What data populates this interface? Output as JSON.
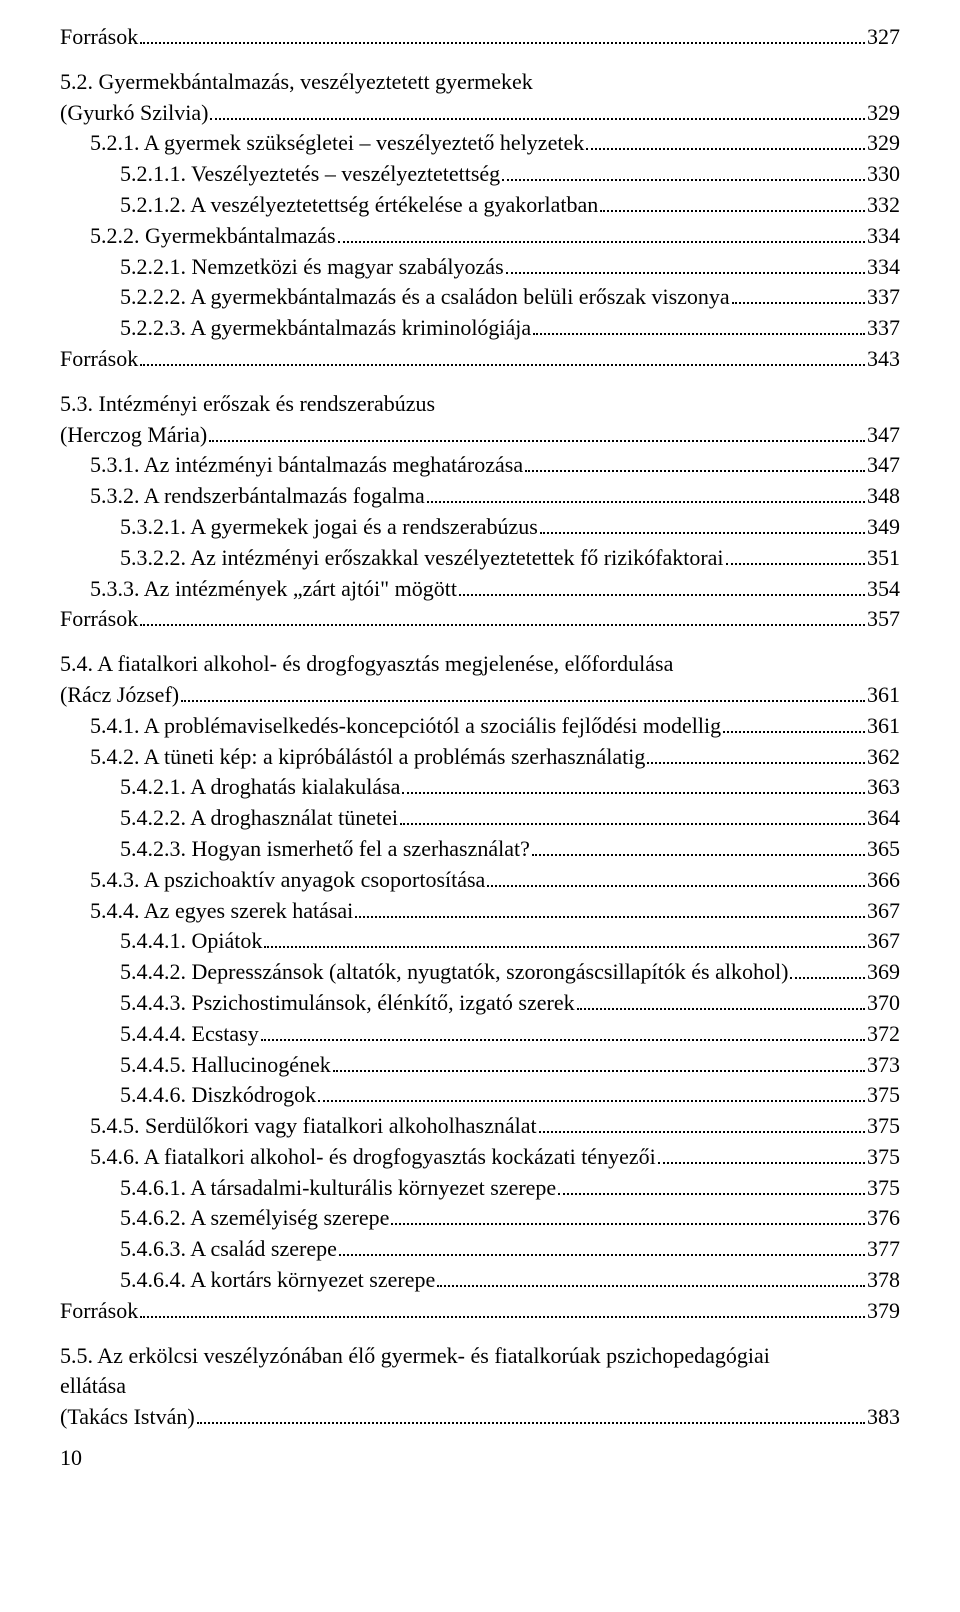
{
  "font_family": "Times New Roman",
  "base_font_size_pt": 12,
  "text_color": "#000000",
  "background_color": "#ffffff",
  "page_number": "10",
  "entries": [
    {
      "indent": 0,
      "label": "Források",
      "page": "327",
      "gap": false,
      "continuation": false
    },
    {
      "indent": 0,
      "label": "5.2. Gyermekbántalmazás, veszélyeztetett gyermekek",
      "page": "",
      "gap": true,
      "continuation": true
    },
    {
      "indent": 0,
      "label": "(Gyurkó Szilvia)",
      "page": "329",
      "gap": false,
      "continuation": false
    },
    {
      "indent": 1,
      "label": "5.2.1. A gyermek szükségletei – veszélyeztető helyzetek",
      "page": "329",
      "gap": false,
      "continuation": false
    },
    {
      "indent": 2,
      "label": "5.2.1.1. Veszélyeztetés – veszélyeztetettség",
      "page": "330",
      "gap": false,
      "continuation": false
    },
    {
      "indent": 2,
      "label": "5.2.1.2. A veszélyeztetettség értékelése a gyakorlatban",
      "page": "332",
      "gap": false,
      "continuation": false
    },
    {
      "indent": 1,
      "label": "5.2.2. Gyermekbántalmazás",
      "page": "334",
      "gap": false,
      "continuation": false
    },
    {
      "indent": 2,
      "label": "5.2.2.1. Nemzetközi és magyar szabályozás",
      "page": "334",
      "gap": false,
      "continuation": false
    },
    {
      "indent": 2,
      "label": "5.2.2.2. A gyermekbántalmazás és a családon belüli erőszak viszonya",
      "page": "337",
      "gap": false,
      "continuation": false
    },
    {
      "indent": 2,
      "label": "5.2.2.3. A gyermekbántalmazás kriminológiája",
      "page": "337",
      "gap": false,
      "continuation": false
    },
    {
      "indent": 0,
      "label": "Források",
      "page": "343",
      "gap": false,
      "continuation": false
    },
    {
      "indent": 0,
      "label": "5.3. Intézményi erőszak és rendszerabúzus",
      "page": "",
      "gap": true,
      "continuation": true
    },
    {
      "indent": 0,
      "label": "(Herczog Mária)",
      "page": "347",
      "gap": false,
      "continuation": false
    },
    {
      "indent": 1,
      "label": "5.3.1. Az intézményi bántalmazás meghatározása",
      "page": "347",
      "gap": false,
      "continuation": false
    },
    {
      "indent": 1,
      "label": "5.3.2. A rendszerbántalmazás fogalma",
      "page": "348",
      "gap": false,
      "continuation": false
    },
    {
      "indent": 2,
      "label": "5.3.2.1. A gyermekek jogai és a rendszerabúzus",
      "page": "349",
      "gap": false,
      "continuation": false
    },
    {
      "indent": 2,
      "label": "5.3.2.2. Az intézményi erőszakkal veszélyeztetettek fő rizikófaktorai",
      "page": "351",
      "gap": false,
      "continuation": false
    },
    {
      "indent": 1,
      "label": "5.3.3. Az intézmények „zárt ajtói\" mögött",
      "page": "354",
      "gap": false,
      "continuation": false
    },
    {
      "indent": 0,
      "label": "Források",
      "page": "357",
      "gap": false,
      "continuation": false
    },
    {
      "indent": 0,
      "label": "5.4. A fiatalkori alkohol- és drogfogyasztás megjelenése, előfordulása",
      "page": "",
      "gap": true,
      "continuation": true
    },
    {
      "indent": 0,
      "label": "(Rácz József)",
      "page": "361",
      "gap": false,
      "continuation": false
    },
    {
      "indent": 1,
      "label": "5.4.1. A problémaviselkedés-koncepciótól a szociális fejlődési modellig",
      "page": "361",
      "gap": false,
      "continuation": false
    },
    {
      "indent": 1,
      "label": "5.4.2. A tüneti kép: a kipróbálástól a problémás szerhasználatig",
      "page": "362",
      "gap": false,
      "continuation": false
    },
    {
      "indent": 2,
      "label": "5.4.2.1. A droghatás kialakulása",
      "page": "363",
      "gap": false,
      "continuation": false
    },
    {
      "indent": 2,
      "label": "5.4.2.2. A droghasználat tünetei",
      "page": "364",
      "gap": false,
      "continuation": false
    },
    {
      "indent": 2,
      "label": "5.4.2.3. Hogyan ismerhető fel a szerhasználat?",
      "page": "365",
      "gap": false,
      "continuation": false
    },
    {
      "indent": 1,
      "label": "5.4.3. A pszichoaktív anyagok csoportosítása",
      "page": "366",
      "gap": false,
      "continuation": false
    },
    {
      "indent": 1,
      "label": "5.4.4. Az egyes szerek hatásai",
      "page": "367",
      "gap": false,
      "continuation": false
    },
    {
      "indent": 2,
      "label": "5.4.4.1. Opiátok",
      "page": "367",
      "gap": false,
      "continuation": false
    },
    {
      "indent": 2,
      "label": "5.4.4.2. Depresszánsok (altatók, nyugtatók, szorongáscsillapítók és alkohol)",
      "page": "369",
      "gap": false,
      "continuation": false
    },
    {
      "indent": 2,
      "label": "5.4.4.3. Pszichostimulánsok, élénkítő, izgató szerek",
      "page": "370",
      "gap": false,
      "continuation": false
    },
    {
      "indent": 2,
      "label": "5.4.4.4. Ecstasy",
      "page": "372",
      "gap": false,
      "continuation": false
    },
    {
      "indent": 2,
      "label": "5.4.4.5. Hallucinogének",
      "page": "373",
      "gap": false,
      "continuation": false
    },
    {
      "indent": 2,
      "label": "5.4.4.6. Diszkódrogok",
      "page": "375",
      "gap": false,
      "continuation": false
    },
    {
      "indent": 1,
      "label": "5.4.5. Serdülőkori vagy fiatalkori alkoholhasználat",
      "page": "375",
      "gap": false,
      "continuation": false
    },
    {
      "indent": 1,
      "label": "5.4.6. A fiatalkori alkohol- és drogfogyasztás kockázati tényezői",
      "page": "375",
      "gap": false,
      "continuation": false
    },
    {
      "indent": 2,
      "label": "5.4.6.1. A társadalmi-kulturális környezet szerepe",
      "page": "375",
      "gap": false,
      "continuation": false
    },
    {
      "indent": 2,
      "label": "5.4.6.2. A személyiség szerepe",
      "page": "376",
      "gap": false,
      "continuation": false
    },
    {
      "indent": 2,
      "label": "5.4.6.3. A család szerepe",
      "page": "377",
      "gap": false,
      "continuation": false
    },
    {
      "indent": 2,
      "label": "5.4.6.4. A kortárs környezet szerepe",
      "page": "378",
      "gap": false,
      "continuation": false
    },
    {
      "indent": 0,
      "label": "Források",
      "page": "379",
      "gap": false,
      "continuation": false
    },
    {
      "indent": 0,
      "label": "5.5. Az erkölcsi veszélyzónában élő gyermek- és fiatalkorúak pszichopedagógiai",
      "page": "",
      "gap": true,
      "continuation": true
    },
    {
      "indent": 0,
      "label": "ellátása",
      "page": "",
      "gap": false,
      "continuation": true
    },
    {
      "indent": 0,
      "label": "(Takács István)",
      "page": "383",
      "gap": false,
      "continuation": false
    }
  ]
}
